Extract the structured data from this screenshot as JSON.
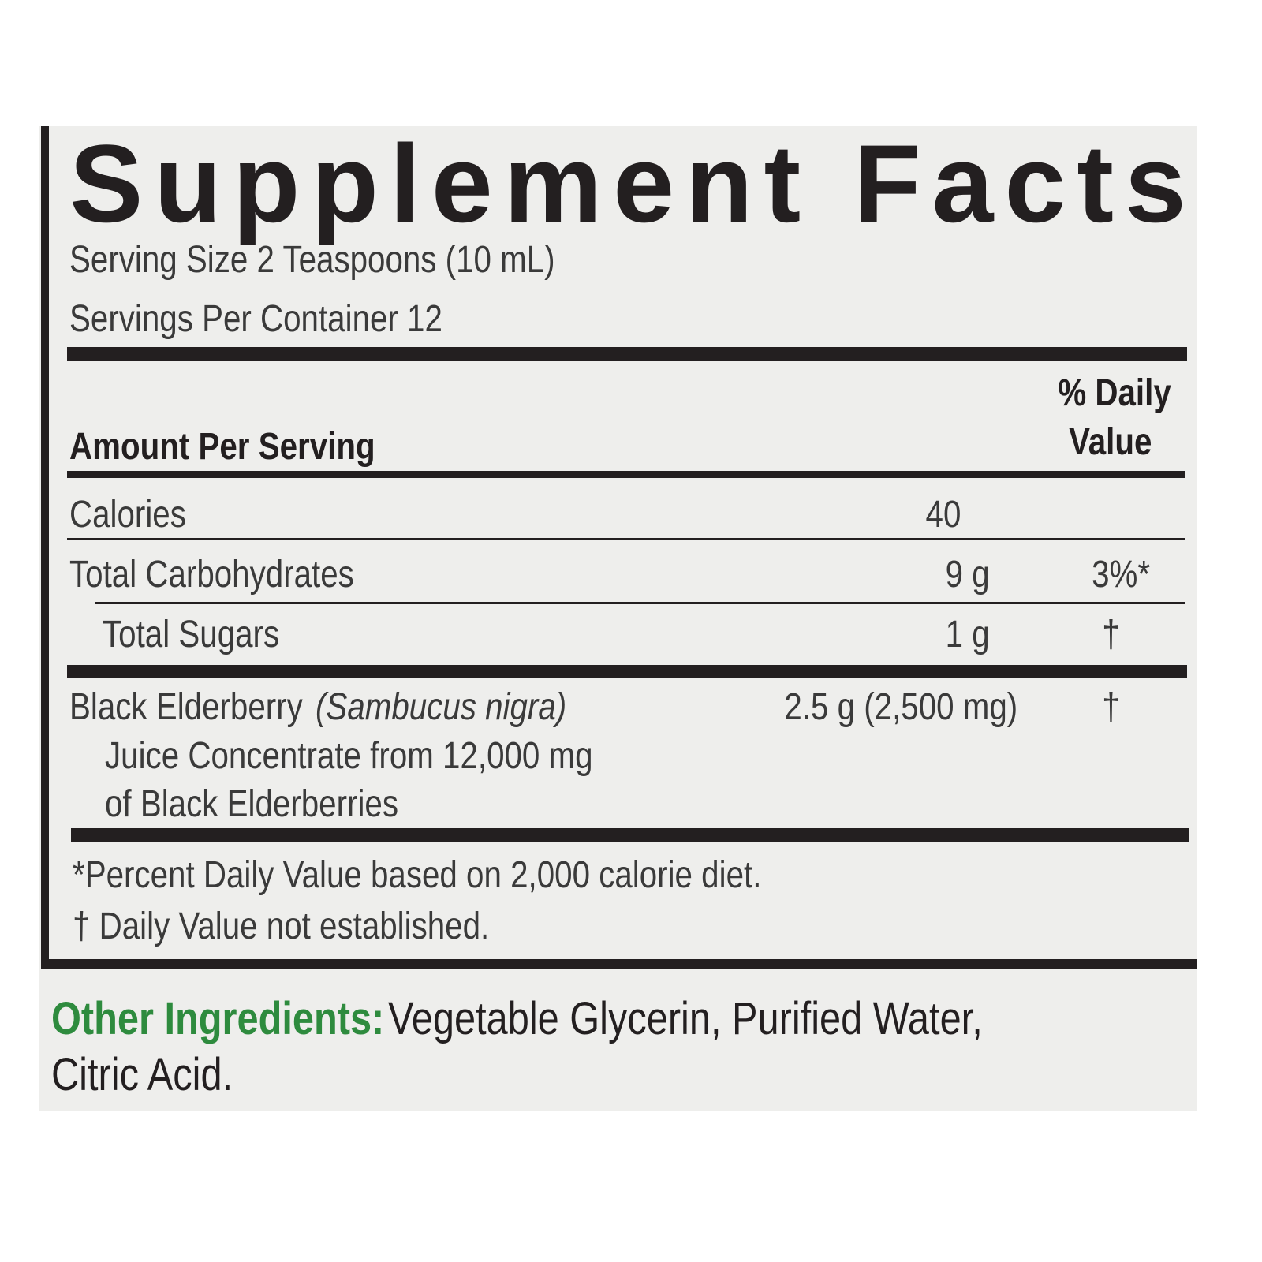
{
  "title": "Supplement Facts",
  "serving_size": "Serving Size 2 Teaspoons (10 mL)",
  "servings_per_container": "Servings Per Container 12",
  "header": {
    "amount_per_serving": "Amount Per Serving",
    "daily_value_line1": "% Daily",
    "daily_value_line2": "Value"
  },
  "rows": [
    {
      "name": "Calories",
      "amount": "40",
      "dv": ""
    },
    {
      "name": "Total Carbohydrates",
      "amount": "9 g",
      "dv": "3%*"
    },
    {
      "name": "Total Sugars",
      "amount": "1 g",
      "dv": "†"
    },
    {
      "name": "Black Elderberry ",
      "latin": "(Sambucus nigra)",
      "line2": "Juice Concentrate from 12,000 mg",
      "line3": "of Black Elderberries",
      "amount": "2.5 g (2,500 mg)",
      "dv": "†"
    }
  ],
  "footnotes": [
    "*Percent Daily Value based on 2,000 calorie diet.",
    "† Daily Value not established."
  ],
  "other_ingredients": {
    "label": "Other Ingredients:",
    "line1": " Vegetable Glycerin, Purified Water,",
    "line2": "Citric Acid."
  },
  "colors": {
    "accent_green": "#2e8b3e",
    "ink": "#231f20",
    "background": "#eeeeec"
  }
}
